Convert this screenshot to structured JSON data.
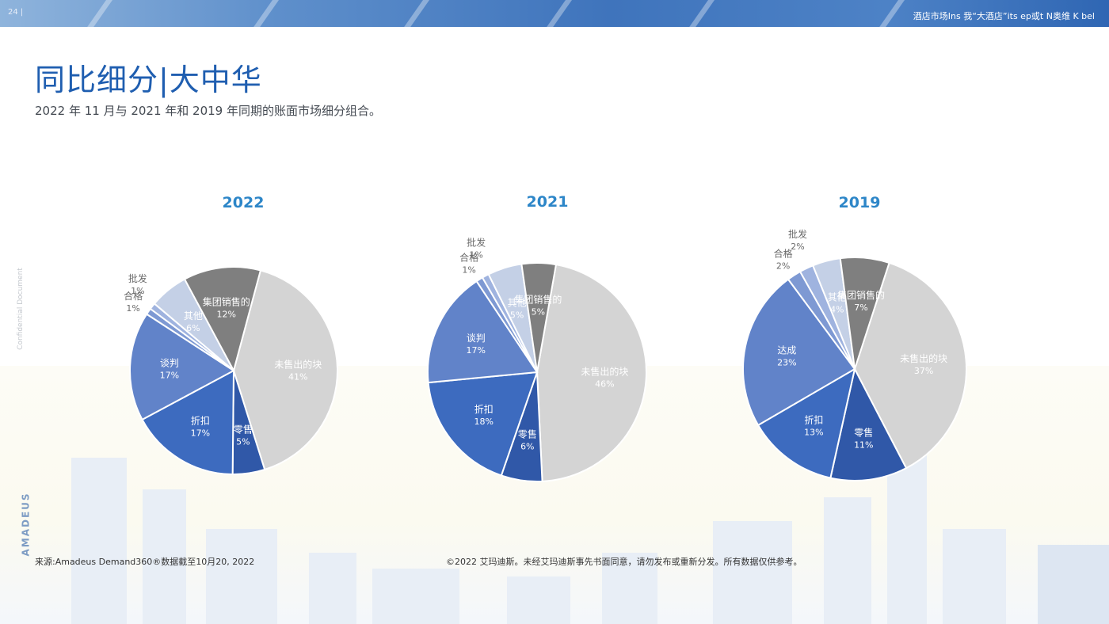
{
  "header": {
    "page_number": "24 |",
    "top_text": "酒店市场Ins 我“大酒店”its      ep或t      N奥维   K      bel"
  },
  "title": "同比细分|大中华",
  "subtitle": "2022 年 11 月与 2021 年和 2019 年同期的账面市场细分组合。",
  "side_label": "Confidential Document",
  "brand": "AMADEUS",
  "footer": {
    "source": "来源:Amadeus Demand360®数据截至10月20, 2022",
    "copyright": "©2022 艾玛迪斯。未经艾玛迪斯事先书面同意，请勿发布或重新分发。所有数据仅供参考。"
  },
  "colors": {
    "unsold": "#d4d4d4",
    "retail": "#3058a8",
    "discount": "#3d6bbf",
    "negotiated": "#6183c9",
    "qualified": "#7e99d3",
    "wholesale": "#9fb3df",
    "other": "#c4d0e6",
    "group": "#7f7f7f"
  },
  "chart_data": [
    {
      "type": "pie",
      "title": "2022",
      "slices": [
        {
          "label": "未售出的块",
          "value": 41
        },
        {
          "label": "零售",
          "value": 5
        },
        {
          "label": "折扣",
          "value": 17
        },
        {
          "label": "谈判",
          "value": 17
        },
        {
          "label": "合格",
          "value": 1
        },
        {
          "label": "批发",
          "value": 1
        },
        {
          "label": "其他",
          "value": 6
        },
        {
          "label": "集团销售的",
          "value": 12
        }
      ]
    },
    {
      "type": "pie",
      "title": "2021",
      "slices": [
        {
          "label": "未售出的块",
          "value": 46
        },
        {
          "label": "零售",
          "value": 6
        },
        {
          "label": "折扣",
          "value": 18
        },
        {
          "label": "谈判",
          "value": 17
        },
        {
          "label": "合格",
          "value": 1
        },
        {
          "label": "批发",
          "value": 1
        },
        {
          "label": "其他",
          "value": 5
        },
        {
          "label": "集团销售的",
          "value": 5
        }
      ]
    },
    {
      "type": "pie",
      "title": "2019",
      "slices": [
        {
          "label": "未售出的块",
          "value": 37
        },
        {
          "label": "零售",
          "value": 11
        },
        {
          "label": "折扣",
          "value": 13
        },
        {
          "label": "达成",
          "value": 23
        },
        {
          "label": "合格",
          "value": 2
        },
        {
          "label": "批发",
          "value": 2
        },
        {
          "label": "其他",
          "value": 4
        },
        {
          "label": "集团销售的",
          "value": 7
        }
      ]
    }
  ]
}
